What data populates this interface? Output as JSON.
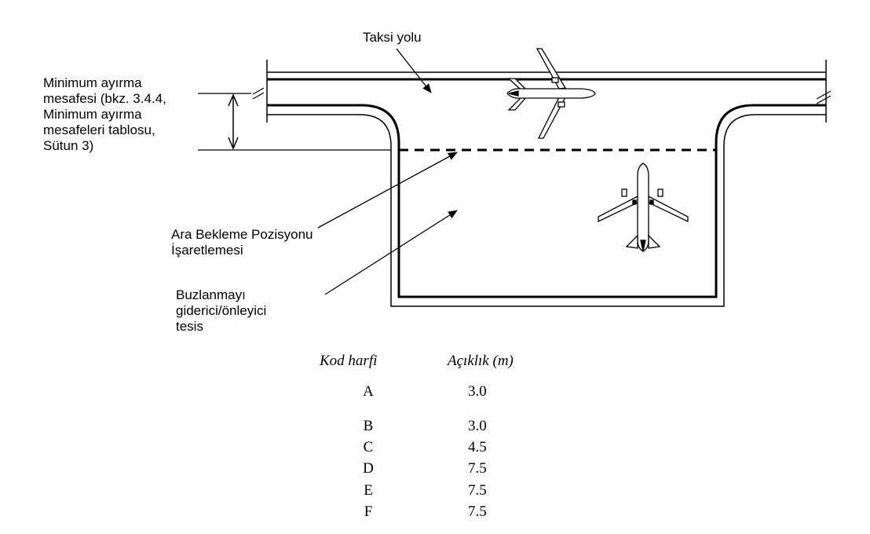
{
  "labels": {
    "taxiway": "Taksi yolu",
    "separation": [
      "Minimum ayırma",
      "mesafesi (bkz. 3.4.4,",
      "Minimum ayırma",
      "mesafeleri tablosu,",
      "Sütun 3)"
    ],
    "holding_position": [
      "Ara Bekleme Pozisyonu",
      "İşaretlemesi"
    ],
    "deicing_facility": [
      "Buzlanmayı",
      "giderici/önleyici",
      "tesis"
    ]
  },
  "table": {
    "headers": [
      "Kod harfi",
      "Açıklık (m)"
    ],
    "rows": [
      {
        "code": "A",
        "clearance": "3.0"
      },
      {
        "code": "B",
        "clearance": "3.0"
      },
      {
        "code": "C",
        "clearance": "4.5"
      },
      {
        "code": "D",
        "clearance": "7.5"
      },
      {
        "code": "E",
        "clearance": "7.5"
      },
      {
        "code": "F",
        "clearance": "7.5"
      }
    ]
  }
}
